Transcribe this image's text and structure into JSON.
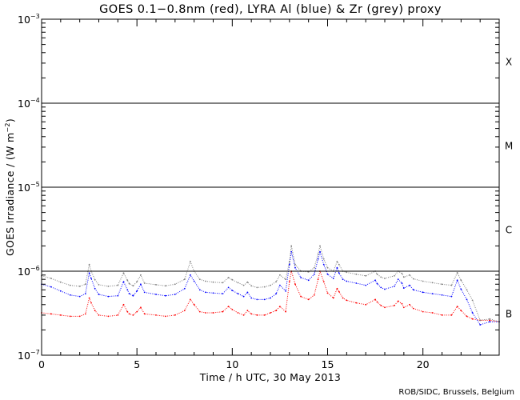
{
  "chart_data": {
    "type": "scatter",
    "title": "GOES 0.1−0.8nm (red), LYRA Al (blue) & Zr (grey) proxy",
    "xlabel": "Time / h UTC, 30 May 2013",
    "ylabel": {
      "text": "GOES Irradiance / (W m",
      "superscript": "−2",
      "suffix": ")"
    },
    "xlim": [
      0,
      24
    ],
    "ylim": [
      1e-07,
      0.001
    ],
    "yscale": "log",
    "x_ticks": [
      0,
      5,
      10,
      15,
      20
    ],
    "x_tick_labels": [
      "0",
      "5",
      "10",
      "15",
      "20"
    ],
    "y_ticks": [
      {
        "value": 1e-07,
        "base": "10",
        "exponent": "−7"
      },
      {
        "value": 1e-06,
        "base": "10",
        "exponent": "−6"
      },
      {
        "value": 1e-05,
        "base": "10",
        "exponent": "−5"
      },
      {
        "value": 0.0001,
        "base": "10",
        "exponent": "−4"
      },
      {
        "value": 0.001,
        "base": "10",
        "exponent": "−3"
      }
    ],
    "class_thresholds": [
      1e-06,
      1e-05,
      0.0001
    ],
    "class_labels": [
      {
        "label": "B",
        "y": 3.16e-07
      },
      {
        "label": "C",
        "y": 3.16e-06
      },
      {
        "label": "M",
        "y": 3.16e-05
      },
      {
        "label": "X",
        "y": 0.000316
      }
    ],
    "grid": false,
    "series": [
      {
        "name": "GOES 0.1−0.8nm",
        "color": "#ff0000",
        "x": [
          0.0,
          0.5,
          1.0,
          1.5,
          2.0,
          2.3,
          2.5,
          2.6,
          2.8,
          3.0,
          3.5,
          4.0,
          4.3,
          4.5,
          4.6,
          4.8,
          5.0,
          5.2,
          5.4,
          6.0,
          6.5,
          7.0,
          7.5,
          7.8,
          8.0,
          8.3,
          8.6,
          9.0,
          9.5,
          9.8,
          10.0,
          10.3,
          10.6,
          10.8,
          11.0,
          11.3,
          11.7,
          12.0,
          12.3,
          12.5,
          12.8,
          13.0,
          13.1,
          13.3,
          13.6,
          14.0,
          14.3,
          14.5,
          14.6,
          14.8,
          15.0,
          15.3,
          15.5,
          15.6,
          15.8,
          16.0,
          16.5,
          17.0,
          17.5,
          17.6,
          17.8,
          18.0,
          18.5,
          18.7,
          18.9,
          19.0,
          19.3,
          19.5,
          20.0,
          20.5,
          21.0,
          21.5,
          21.8,
          22.0,
          22.3,
          22.6,
          23.0,
          23.5,
          24.0
        ],
        "values": [
          3.2e-07,
          3.1e-07,
          3e-07,
          2.9e-07,
          2.9e-07,
          3.1e-07,
          4.8e-07,
          4.2e-07,
          3.4e-07,
          3e-07,
          2.9e-07,
          3e-07,
          4e-07,
          3.3e-07,
          3.1e-07,
          3e-07,
          3.3e-07,
          3.7e-07,
          3.1e-07,
          3e-07,
          2.9e-07,
          3e-07,
          3.4e-07,
          4.6e-07,
          4e-07,
          3.3e-07,
          3.2e-07,
          3.2e-07,
          3.3e-07,
          3.8e-07,
          3.5e-07,
          3.2e-07,
          3e-07,
          3.4e-07,
          3.1e-07,
          3e-07,
          3e-07,
          3.2e-07,
          3.4e-07,
          3.8e-07,
          3.3e-07,
          7.5e-07,
          1e-06,
          7e-07,
          5e-07,
          4.6e-07,
          5.2e-07,
          8e-07,
          1e-06,
          7.5e-07,
          5.5e-07,
          4.8e-07,
          6.2e-07,
          5.7e-07,
          4.8e-07,
          4.5e-07,
          4.2e-07,
          4e-07,
          4.6e-07,
          4.3e-07,
          3.9e-07,
          3.7e-07,
          3.9e-07,
          4.4e-07,
          4.1e-07,
          3.7e-07,
          4e-07,
          3.6e-07,
          3.3e-07,
          3.2e-07,
          3e-07,
          3e-07,
          3.8e-07,
          3.4e-07,
          2.9e-07,
          2.7e-07,
          2.6e-07,
          2.6e-07,
          2.5e-07
        ]
      },
      {
        "name": "LYRA Al",
        "color": "#0000ff",
        "x": [
          0.0,
          0.5,
          1.0,
          1.5,
          2.0,
          2.3,
          2.5,
          2.6,
          2.8,
          3.0,
          3.5,
          4.0,
          4.3,
          4.5,
          4.6,
          4.8,
          5.0,
          5.2,
          5.4,
          6.0,
          6.5,
          7.0,
          7.5,
          7.8,
          8.0,
          8.3,
          8.6,
          9.0,
          9.5,
          9.8,
          10.0,
          10.3,
          10.6,
          10.8,
          11.0,
          11.3,
          11.7,
          12.0,
          12.3,
          12.5,
          12.8,
          13.0,
          13.1,
          13.3,
          13.6,
          14.0,
          14.3,
          14.5,
          14.6,
          14.8,
          15.0,
          15.3,
          15.5,
          15.6,
          15.8,
          16.0,
          16.5,
          17.0,
          17.5,
          17.6,
          17.8,
          18.0,
          18.5,
          18.7,
          18.9,
          19.0,
          19.3,
          19.5,
          20.0,
          20.5,
          21.0,
          21.5,
          21.8,
          22.0,
          22.3,
          22.6,
          23.0,
          23.5,
          24.0
        ],
        "values": [
          7e-07,
          6.5e-07,
          5.8e-07,
          5.2e-07,
          5e-07,
          5.4e-07,
          9.5e-07,
          8.2e-07,
          6.2e-07,
          5.3e-07,
          5e-07,
          5.1e-07,
          7.5e-07,
          6e-07,
          5.4e-07,
          5.1e-07,
          5.8e-07,
          7e-07,
          5.6e-07,
          5.3e-07,
          5.1e-07,
          5.3e-07,
          6.2e-07,
          9e-07,
          7.6e-07,
          6e-07,
          5.6e-07,
          5.5e-07,
          5.4e-07,
          6.4e-07,
          5.9e-07,
          5.4e-07,
          5e-07,
          5.6e-07,
          4.8e-07,
          4.6e-07,
          4.6e-07,
          4.8e-07,
          5.4e-07,
          6.8e-07,
          5.8e-07,
          1.2e-06,
          1.7e-06,
          1.1e-06,
          8.4e-07,
          7.8e-07,
          9.2e-07,
          1.4e-06,
          1.7e-06,
          1.2e-06,
          9.2e-07,
          8.2e-07,
          1.1e-06,
          9.5e-07,
          8e-07,
          7.6e-07,
          7.2e-07,
          6.8e-07,
          7.8e-07,
          7.1e-07,
          6.4e-07,
          6.1e-07,
          6.6e-07,
          8e-07,
          7.2e-07,
          6.3e-07,
          6.8e-07,
          6e-07,
          5.6e-07,
          5.4e-07,
          5.2e-07,
          5e-07,
          7.8e-07,
          6.1e-07,
          4.6e-07,
          3.2e-07,
          2.3e-07,
          2.5e-07,
          2.5e-07
        ]
      },
      {
        "name": "Zr",
        "color": "#7f7f7f",
        "x": [
          0.0,
          0.5,
          1.0,
          1.5,
          2.0,
          2.3,
          2.5,
          2.6,
          2.8,
          3.0,
          3.5,
          4.0,
          4.3,
          4.5,
          4.6,
          4.8,
          5.0,
          5.2,
          5.4,
          6.0,
          6.5,
          7.0,
          7.5,
          7.8,
          8.0,
          8.3,
          8.6,
          9.0,
          9.5,
          9.8,
          10.0,
          10.3,
          10.6,
          10.8,
          11.0,
          11.3,
          11.7,
          12.0,
          12.3,
          12.5,
          12.8,
          13.0,
          13.1,
          13.3,
          13.6,
          14.0,
          14.3,
          14.5,
          14.6,
          14.8,
          15.0,
          15.3,
          15.5,
          15.6,
          15.8,
          16.0,
          16.5,
          17.0,
          17.5,
          17.6,
          17.8,
          18.0,
          18.5,
          18.7,
          18.9,
          19.0,
          19.3,
          19.5,
          20.0,
          20.5,
          21.0,
          21.5,
          21.8,
          22.0,
          22.3,
          22.6,
          23.0,
          23.5,
          24.0
        ],
        "values": [
          8.8e-07,
          8.2e-07,
          7.4e-07,
          6.8e-07,
          6.6e-07,
          7e-07,
          1.2e-06,
          1e-06,
          7.9e-07,
          6.9e-07,
          6.6e-07,
          6.8e-07,
          9.5e-07,
          7.8e-07,
          7.1e-07,
          6.7e-07,
          7.5e-07,
          9e-07,
          7.2e-07,
          6.9e-07,
          6.7e-07,
          7e-07,
          8e-07,
          1.3e-06,
          1e-06,
          8e-07,
          7.6e-07,
          7.4e-07,
          7.3e-07,
          8.4e-07,
          7.9e-07,
          7.3e-07,
          6.8e-07,
          7.4e-07,
          6.7e-07,
          6.4e-07,
          6.5e-07,
          6.8e-07,
          7.5e-07,
          9e-07,
          8e-07,
          1.3e-06,
          2e-06,
          1.2e-06,
          1e-06,
          9.8e-07,
          1.1e-06,
          1.6e-06,
          2e-06,
          1.4e-06,
          1.1e-06,
          1e-06,
          1.3e-06,
          1.2e-06,
          1e-06,
          9.7e-07,
          9.2e-07,
          8.8e-07,
          1e-06,
          9.2e-07,
          8.5e-07,
          8.2e-07,
          8.8e-07,
          1e-06,
          9.4e-07,
          8.5e-07,
          9e-07,
          8.1e-07,
          7.6e-07,
          7.3e-07,
          7e-07,
          6.8e-07,
          9.6e-07,
          7.8e-07,
          6e-07,
          4.5e-07,
          2.6e-07,
          2.7e-07,
          2.5e-07
        ]
      }
    ]
  },
  "credit": "ROB/SIDC, Brussels, Belgium"
}
